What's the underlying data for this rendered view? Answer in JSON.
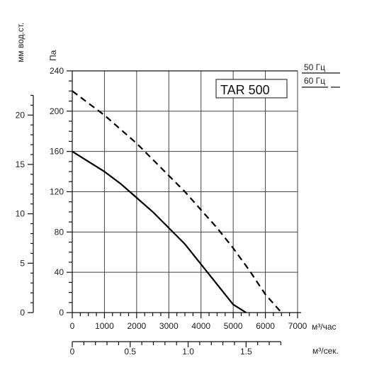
{
  "chart_data": {
    "type": "line",
    "x_unit_top": "м³/час",
    "x_unit_bottom": "м³/сек.",
    "y_unit_left_primary": "Па",
    "y_unit_left_secondary": "мм вод.ст.",
    "xlim": [
      0,
      7000
    ],
    "ylim": [
      0,
      240
    ],
    "x_ticks": [
      "0",
      "1000",
      "2000",
      "3000",
      "4000",
      "5000",
      "6000",
      "7000"
    ],
    "y_ticks": [
      "0",
      "40",
      "80",
      "120",
      "160",
      "200",
      "240"
    ],
    "y2_ticks": [
      "0",
      "5",
      "10",
      "15",
      "20"
    ],
    "x2_ticks": [
      "0",
      "0.5",
      "1.0",
      "1.5"
    ],
    "grid": true,
    "annotation": "TAR 500",
    "legend": {
      "placement": "top-right",
      "entries": [
        {
          "label": "50 Гц",
          "style": "solid"
        },
        {
          "label": "60 Гц",
          "style": "dashed"
        }
      ]
    },
    "series": [
      {
        "style": "solid",
        "x": [
          0,
          1000,
          1500,
          2000,
          2500,
          3000,
          3500,
          4000,
          4500,
          5000,
          5400
        ],
        "y": [
          160,
          140,
          128,
          114,
          100,
          84,
          68,
          48,
          28,
          8,
          0
        ]
      },
      {
        "style": "dashed",
        "x": [
          0,
          500,
          1000,
          1500,
          2000,
          2500,
          3000,
          3500,
          4000,
          4500,
          5000,
          5500,
          6000,
          6500
        ],
        "y": [
          220,
          208,
          196,
          182,
          168,
          152,
          136,
          120,
          102,
          84,
          64,
          42,
          18,
          0
        ]
      }
    ]
  }
}
